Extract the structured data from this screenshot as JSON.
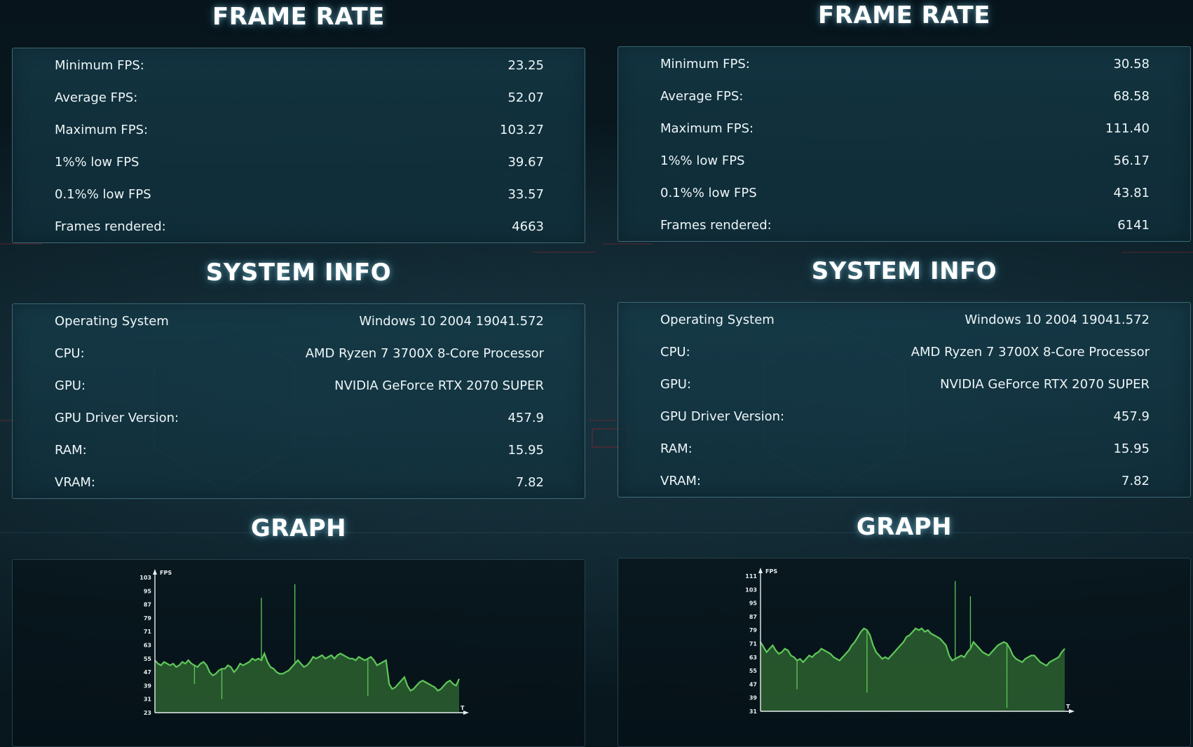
{
  "left": {
    "frame_rate": {
      "title": "FRAME RATE",
      "rows": [
        {
          "label": "Minimum FPS:",
          "value": "23.25"
        },
        {
          "label": "Average FPS:",
          "value": "52.07"
        },
        {
          "label": "Maximum FPS:",
          "value": "103.27"
        },
        {
          "label": "1%% low FPS",
          "value": "39.67"
        },
        {
          "label": "0.1%% low FPS",
          "value": "33.57"
        },
        {
          "label": "Frames rendered:",
          "value": "4663"
        }
      ]
    },
    "system_info": {
      "title": "SYSTEM INFO",
      "rows": [
        {
          "label": "Operating System",
          "value": "Windows 10 2004 19041.572"
        },
        {
          "label": "CPU:",
          "value": "AMD Ryzen 7 3700X 8-Core Processor"
        },
        {
          "label": "GPU:",
          "value": "NVIDIA GeForce RTX 2070 SUPER"
        },
        {
          "label": "GPU Driver Version:",
          "value": "457.9"
        },
        {
          "label": "RAM:",
          "value": "15.95"
        },
        {
          "label": "VRAM:",
          "value": "7.82"
        }
      ]
    },
    "graph": {
      "title": "GRAPH"
    }
  },
  "right": {
    "frame_rate": {
      "title": "FRAME RATE",
      "rows": [
        {
          "label": "Minimum FPS:",
          "value": "30.58"
        },
        {
          "label": "Average FPS:",
          "value": "68.58"
        },
        {
          "label": "Maximum FPS:",
          "value": "111.40"
        },
        {
          "label": "1%% low FPS",
          "value": "56.17"
        },
        {
          "label": "0.1%% low FPS",
          "value": "43.81"
        },
        {
          "label": "Frames rendered:",
          "value": "6141"
        }
      ]
    },
    "system_info": {
      "title": "SYSTEM INFO",
      "rows": [
        {
          "label": "Operating System",
          "value": "Windows 10 2004 19041.572"
        },
        {
          "label": "CPU:",
          "value": "AMD Ryzen 7 3700X 8-Core Processor"
        },
        {
          "label": "GPU:",
          "value": "NVIDIA GeForce RTX 2070 SUPER"
        },
        {
          "label": "GPU Driver Version:",
          "value": "457.9"
        },
        {
          "label": "RAM:",
          "value": "15.95"
        },
        {
          "label": "VRAM:",
          "value": "7.82"
        }
      ]
    },
    "graph": {
      "title": "GRAPH"
    }
  },
  "colors": {
    "accent": "#5fc85a",
    "fill": "#3f8a3c",
    "panel": "#163c4a",
    "text": "#eef6f8"
  },
  "chart_data": [
    {
      "type": "area",
      "title": "",
      "xlabel": "T",
      "ylabel": "FPS",
      "ylim": [
        23,
        103
      ],
      "yticks": [
        103,
        95,
        87,
        79,
        71,
        63,
        55,
        47,
        39,
        31,
        23
      ],
      "grid": false,
      "series": [
        {
          "x": [
            0,
            1,
            2,
            3,
            4,
            5,
            6,
            7,
            8,
            9,
            10,
            11,
            12,
            13,
            14,
            15,
            16,
            17,
            18,
            19,
            20,
            21,
            22,
            23,
            24,
            25,
            26,
            27,
            28,
            29,
            30,
            31,
            32,
            33,
            34,
            35,
            36,
            37,
            38,
            39,
            40,
            41,
            42,
            43,
            44,
            45,
            46,
            47,
            48,
            49,
            50,
            51,
            52,
            53,
            54,
            55,
            56,
            57,
            58,
            59,
            60,
            61,
            62,
            63,
            64,
            65,
            66,
            67,
            68,
            69,
            70,
            71,
            72,
            73,
            74,
            75,
            76,
            77,
            78,
            79,
            80,
            81,
            82,
            83,
            84,
            85,
            86,
            87,
            88,
            89,
            90,
            91,
            92,
            93,
            94,
            95,
            96,
            97,
            98,
            99,
            100
          ],
          "y": [
            54,
            52,
            51,
            53,
            52,
            51,
            52,
            50,
            51,
            53,
            52,
            54,
            52,
            51,
            50,
            52,
            53,
            51,
            47,
            45,
            46,
            48,
            49,
            49,
            51,
            50,
            47,
            49,
            52,
            51,
            52,
            53,
            55,
            54,
            55,
            54,
            58,
            53,
            50,
            49,
            47,
            46,
            46,
            47,
            48,
            50,
            52,
            54,
            52,
            50,
            51,
            53,
            56,
            55,
            56,
            57,
            55,
            56,
            57,
            55,
            57,
            58,
            57,
            56,
            55,
            55,
            54,
            56,
            55,
            54,
            55,
            56,
            54,
            51,
            52,
            53,
            54,
            40,
            37,
            38,
            40,
            42,
            44,
            39,
            36,
            37,
            39,
            41,
            42,
            41,
            40,
            39,
            38,
            36,
            37,
            39,
            41,
            42,
            40,
            39,
            43
          ],
          "spikes": [
            {
              "x": 35,
              "y": 91
            },
            {
              "x": 46,
              "y": 99
            },
            {
              "x": 22,
              "y": 31
            },
            {
              "x": 70,
              "y": 33
            },
            {
              "x": 13,
              "y": 40
            }
          ]
        }
      ]
    },
    {
      "type": "area",
      "title": "",
      "xlabel": "T",
      "ylabel": "FPS",
      "ylim": [
        31,
        111
      ],
      "yticks": [
        111,
        103,
        95,
        87,
        79,
        71,
        63,
        55,
        47,
        39,
        31
      ],
      "grid": false,
      "series": [
        {
          "x": [
            0,
            1,
            2,
            3,
            4,
            5,
            6,
            7,
            8,
            9,
            10,
            11,
            12,
            13,
            14,
            15,
            16,
            17,
            18,
            19,
            20,
            21,
            22,
            23,
            24,
            25,
            26,
            27,
            28,
            29,
            30,
            31,
            32,
            33,
            34,
            35,
            36,
            37,
            38,
            39,
            40,
            41,
            42,
            43,
            44,
            45,
            46,
            47,
            48,
            49,
            50,
            51,
            52,
            53,
            54,
            55,
            56,
            57,
            58,
            59,
            60,
            61,
            62,
            63,
            64,
            65,
            66,
            67,
            68,
            69,
            70,
            71,
            72,
            73,
            74,
            75,
            76,
            77,
            78,
            79,
            80,
            81,
            82,
            83,
            84,
            85,
            86,
            87,
            88,
            89,
            90,
            91,
            92,
            93,
            94,
            95,
            96,
            97,
            98,
            99,
            100
          ],
          "y": [
            72,
            69,
            66,
            68,
            70,
            67,
            65,
            66,
            68,
            67,
            64,
            63,
            61,
            62,
            60,
            62,
            64,
            63,
            65,
            66,
            68,
            67,
            66,
            65,
            63,
            62,
            61,
            63,
            65,
            67,
            70,
            72,
            75,
            78,
            80,
            79,
            76,
            70,
            66,
            64,
            62,
            63,
            62,
            64,
            66,
            68,
            70,
            72,
            75,
            76,
            78,
            80,
            79,
            80,
            78,
            79,
            77,
            76,
            75,
            74,
            72,
            70,
            64,
            61,
            62,
            63,
            64,
            63,
            66,
            68,
            72,
            70,
            68,
            66,
            65,
            64,
            66,
            68,
            70,
            71,
            72,
            71,
            68,
            64,
            62,
            61,
            60,
            62,
            63,
            64,
            64,
            62,
            60,
            59,
            58,
            60,
            61,
            62,
            63,
            66,
            68
          ],
          "spikes": [
            {
              "x": 64,
              "y": 108
            },
            {
              "x": 69,
              "y": 99
            },
            {
              "x": 81,
              "y": 33
            },
            {
              "x": 35,
              "y": 42
            },
            {
              "x": 12,
              "y": 44
            }
          ]
        }
      ]
    }
  ]
}
